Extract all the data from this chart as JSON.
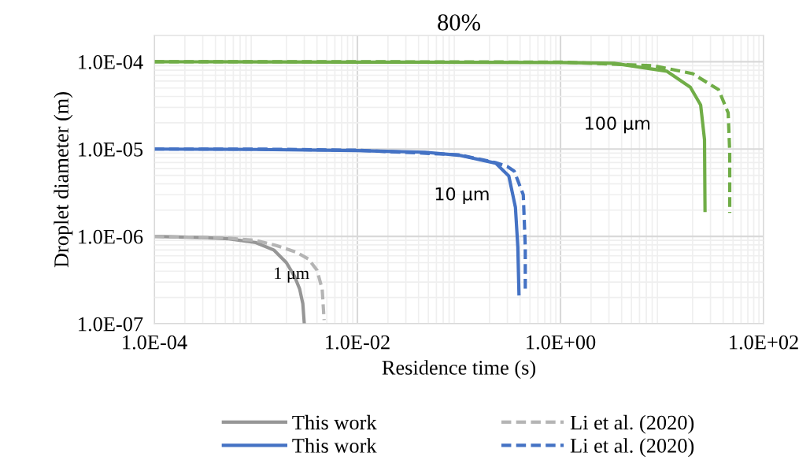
{
  "chart_data": {
    "type": "line",
    "title": "80%",
    "xlabel": "Residence time (s)",
    "ylabel": "Droplet diameter (m)",
    "log": "xy",
    "grid": true,
    "legend": "bottom",
    "xlim": [
      0.0001,
      100
    ],
    "ylim": [
      1e-07,
      0.0002
    ],
    "xticks": [
      {
        "value": 0.0001,
        "label": "1.0E-04"
      },
      {
        "value": 0.01,
        "label": "1.0E-02"
      },
      {
        "value": 1,
        "label": "1.0E+00"
      },
      {
        "value": 100,
        "label": "1.0E+02"
      }
    ],
    "yticks": [
      {
        "value": 1e-07,
        "label": "1.0E-07"
      },
      {
        "value": 1e-06,
        "label": "1.0E-06"
      },
      {
        "value": 1e-05,
        "label": "1.0E-05"
      },
      {
        "value": 0.0001,
        "label": "1.0E-04"
      }
    ],
    "series": [
      {
        "name": "This work",
        "color": "#969696",
        "line_style": "solid",
        "x": [
          0.0001,
          0.0003,
          0.00054,
          0.001,
          0.0015,
          0.002,
          0.0024,
          0.0027,
          0.0029,
          0.003
        ],
        "values": [
          1e-06,
          9.7e-07,
          9.4e-07,
          8.5e-07,
          7e-07,
          5e-07,
          3.5e-07,
          2.5e-07,
          1.7e-07,
          1e-07
        ]
      },
      {
        "name": "Li et al. (2020)",
        "color": "#b4b4b4",
        "line_style": "dashed",
        "x": [
          0.0001,
          0.0005,
          0.001,
          0.00157,
          0.0025,
          0.0033,
          0.004,
          0.0045,
          0.0047
        ],
        "values": [
          1e-06,
          9.6e-07,
          9e-07,
          7.9e-07,
          6.6e-07,
          5.5e-07,
          4.1e-07,
          2.5e-07,
          1.1e-07
        ]
      },
      {
        "name": "This work",
        "color": "#4472c4",
        "line_style": "solid",
        "x": [
          0.0001,
          0.001,
          0.01,
          0.046,
          0.1,
          0.23,
          0.31,
          0.36,
          0.38,
          0.39
        ],
        "values": [
          1e-05,
          9.9e-06,
          9.6e-06,
          9.2e-06,
          8.5e-06,
          6.9e-06,
          4.9e-06,
          2.15e-06,
          7.6e-07,
          2.2e-07
        ]
      },
      {
        "name": "Li et al. (2020)",
        "color": "#4472c4",
        "line_style": "dashed",
        "x": [
          0.0001,
          0.001,
          0.01,
          0.1,
          0.23,
          0.3,
          0.35,
          0.43,
          0.45,
          0.45
        ],
        "values": [
          1e-05,
          1e-05,
          9.7e-06,
          8.6e-06,
          7e-06,
          6.3e-06,
          5.6e-06,
          3e-06,
          7.6e-07,
          2.5e-07
        ]
      },
      {
        "color": "#70ad47",
        "line_style": "solid",
        "x": [
          0.0001,
          0.01,
          1,
          3.37,
          11.1,
          19,
          24,
          26.2,
          26.5
        ],
        "values": [
          0.0001,
          9.9e-05,
          9.8e-05,
          9.6e-05,
          7.8e-05,
          5.1e-05,
          3.2e-05,
          1.28e-05,
          1.98e-06
        ]
      },
      {
        "color": "#70ad47",
        "line_style": "dashed",
        "x": [
          0.0001,
          0.01,
          1,
          8.2,
          20,
          36,
          44.8,
          46.4,
          46.4
        ],
        "values": [
          0.0001,
          0.0001,
          9.9e-05,
          9e-05,
          7.3e-05,
          4.8e-05,
          2.6e-05,
          9.2e-06,
          1.86e-06
        ]
      }
    ],
    "annotations": [
      "1 μm",
      "10 μm",
      "100 μm"
    ]
  }
}
